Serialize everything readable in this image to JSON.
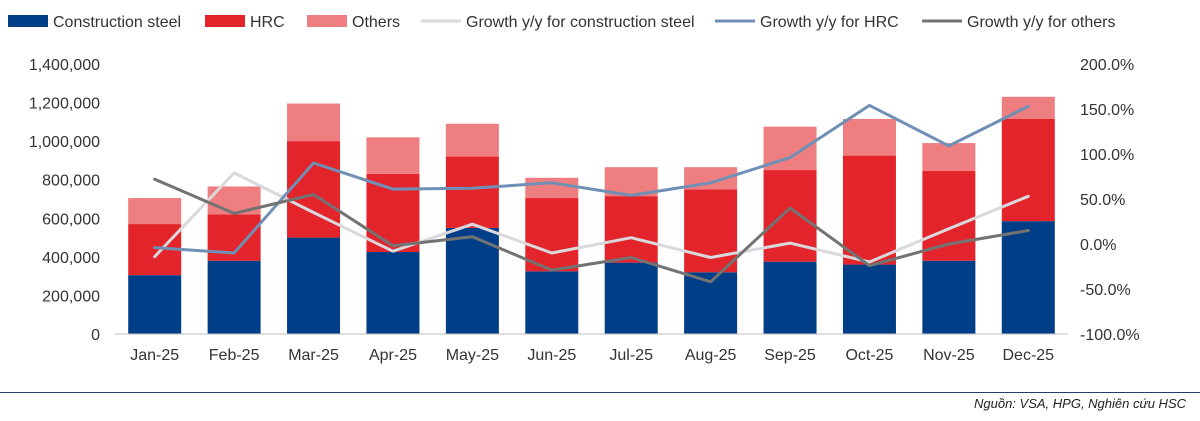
{
  "chart_data": {
    "type": "bar+line",
    "categories": [
      "Jan-25",
      "Feb-25",
      "Mar-25",
      "Apr-25",
      "May-25",
      "Jun-25",
      "Jul-25",
      "Aug-25",
      "Sep-25",
      "Oct-25",
      "Nov-25",
      "Dec-25"
    ],
    "bar_series": [
      {
        "name": "Construction steel",
        "color": "#003f87",
        "values": [
          305000,
          380000,
          500000,
          425000,
          550000,
          325000,
          370000,
          320000,
          375000,
          360000,
          380000,
          585000
        ]
      },
      {
        "name": "HRC",
        "color": "#e3242b",
        "values": [
          265000,
          240000,
          500000,
          405000,
          370000,
          380000,
          345000,
          430000,
          475000,
          565000,
          465000,
          530000
        ]
      },
      {
        "name": "Others",
        "color": "#ee7e80",
        "values": [
          135000,
          145000,
          195000,
          190000,
          170000,
          105000,
          150000,
          115000,
          225000,
          190000,
          145000,
          115000
        ]
      }
    ],
    "line_series": [
      {
        "name": "Growth y/y for construction steel",
        "color": "#d9d9dd",
        "values": [
          -14,
          79,
          35,
          -8,
          22,
          -10,
          7,
          -15,
          1,
          -20,
          17,
          53
        ]
      },
      {
        "name": "Growth y/y for HRC",
        "color": "#6f8fb5",
        "values": [
          -4,
          -10,
          90,
          61,
          62,
          68,
          54,
          68,
          96,
          154,
          109,
          153
        ]
      },
      {
        "name": "Growth y/y for others",
        "color": "#737373",
        "values": [
          72,
          34,
          55,
          -2,
          8,
          -29,
          -15,
          -42,
          40,
          -24,
          0,
          15
        ]
      }
    ],
    "y_left": {
      "min": 0,
      "max": 1400000,
      "step": 200000,
      "tick_labels": [
        "0",
        "200,000",
        "400,000",
        "600,000",
        "800,000",
        "1,000,000",
        "1,200,000",
        "1,400,000"
      ]
    },
    "y_right": {
      "min": -100,
      "max": 200,
      "step": 50,
      "tick_labels": [
        "-100.0%",
        "-50.0%",
        "0.0%",
        "50.0%",
        "100.0%",
        "150.0%",
        "200.0%"
      ]
    },
    "legend": [
      {
        "label": "Construction steel",
        "kind": "bar",
        "color": "#003f87"
      },
      {
        "label": "HRC",
        "kind": "bar",
        "color": "#e3242b"
      },
      {
        "label": "Others",
        "kind": "bar",
        "color": "#ee7e80"
      },
      {
        "label": "Growth y/y for construction steel",
        "kind": "line",
        "color": "#d9d9dd"
      },
      {
        "label": "Growth y/y for HRC",
        "kind": "line",
        "color": "#6f8fb5"
      },
      {
        "label": "Growth y/y for others",
        "kind": "line",
        "color": "#737373"
      }
    ],
    "legend_position": "top"
  },
  "source": "Nguồn: VSA, HPG, Nghiên cứu HSC"
}
